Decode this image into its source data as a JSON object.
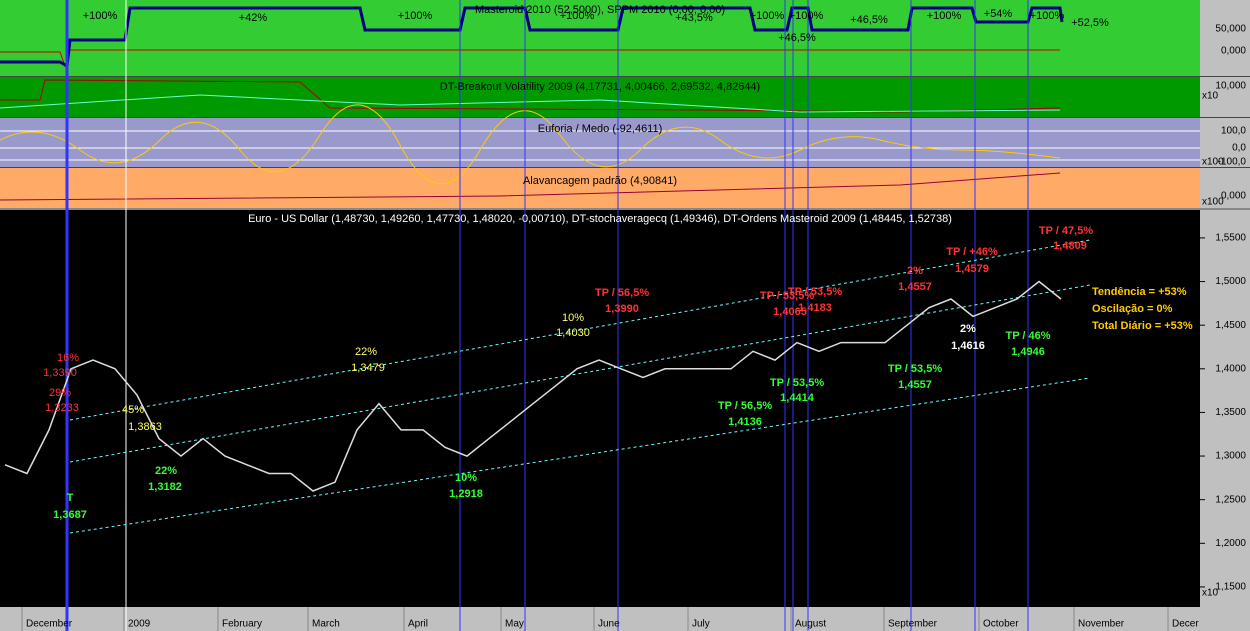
{
  "panels": {
    "masteroid": {
      "title": "Masteroid 2010 (52,5000), SPPM 2010 (0,00, 0,00)",
      "axis_labels": [
        "50,000",
        "0,000"
      ],
      "labels": [
        "+100%",
        "+42%",
        "+100%",
        "+100%",
        "+43,5%",
        "+100%",
        "+100%",
        "+46,5%",
        "+46,5%",
        "+100%",
        "+54%",
        "+100%",
        "+52,5%"
      ]
    },
    "volatility": {
      "title": "DT-Breakout Volatility 2009 (4,17731, 4,00466, 2,69532, 4,82644)",
      "axis_labels": [
        "10,000",
        "x10"
      ]
    },
    "euforia": {
      "title": "Euforia / Medo (-92,4611)",
      "axis_labels": [
        "100,0",
        "0,0",
        "-100,0",
        "x100"
      ]
    },
    "alavancagem": {
      "title": "Alavancagem padrão (4,90841)",
      "axis_labels": [
        "0,000",
        "x100"
      ]
    }
  },
  "main": {
    "title": "Euro - US Dollar (1,48730, 1,49260, 1,47730, 1,48020, -0,00710), DT-stochaveragecq (1,49346), DT-Ordens Masteroid 2009 (1,48445, 1,52738)",
    "ylim": [
      1.127,
      1.582
    ],
    "yticks": [
      {
        "value": 1.55,
        "label": "1,5500"
      },
      {
        "value": 1.5,
        "label": "1,5000"
      },
      {
        "value": 1.45,
        "label": "1,4500"
      },
      {
        "value": 1.4,
        "label": "1,4000"
      },
      {
        "value": 1.35,
        "label": "1,3500"
      },
      {
        "value": 1.3,
        "label": "1,3000"
      },
      {
        "value": 1.25,
        "label": "1,2500"
      },
      {
        "value": 1.2,
        "label": "1,2000"
      },
      {
        "value": 1.15,
        "label": "1,1500"
      }
    ],
    "scale_note": "x10",
    "closes": [
      1.29,
      1.28,
      1.33,
      1.4,
      1.41,
      1.4,
      1.37,
      1.32,
      1.3,
      1.32,
      1.3,
      1.29,
      1.28,
      1.28,
      1.26,
      1.27,
      1.33,
      1.36,
      1.33,
      1.33,
      1.31,
      1.3,
      1.32,
      1.34,
      1.36,
      1.38,
      1.4,
      1.41,
      1.4,
      1.39,
      1.4,
      1.4,
      1.4,
      1.4,
      1.42,
      1.41,
      1.43,
      1.42,
      1.43,
      1.43,
      1.43,
      1.45,
      1.47,
      1.48,
      1.46,
      1.47,
      1.48,
      1.5,
      1.48
    ],
    "close_color": "#dddddd",
    "annotations": [
      {
        "text": "16%",
        "color": "#ff3333"
      },
      {
        "text": "1,3390",
        "color": "#ff3333"
      },
      {
        "text": "29%",
        "color": "#ff3333"
      },
      {
        "text": "1,3233",
        "color": "#ff3333"
      },
      {
        "text": "TP / 56,5%",
        "color": "#ff3333"
      },
      {
        "text": "1,3990",
        "color": "#ff3333"
      },
      {
        "text": "TP / 53,5%",
        "color": "#ff3333"
      },
      {
        "text": "1,4065",
        "color": "#ff3333"
      },
      {
        "text": "TP / 53,5%",
        "color": "#ff3333"
      },
      {
        "text": "1,4183",
        "color": "#ff3333"
      },
      {
        "text": "2%",
        "color": "#ff3333"
      },
      {
        "text": "1,4557",
        "color": "#ff3333"
      },
      {
        "text": "TP / +46%",
        "color": "#ff3333"
      },
      {
        "text": "1,4579",
        "color": "#ff3333"
      },
      {
        "text": "TP / 47,5%",
        "color": "#ff3333"
      },
      {
        "text": "1,4809",
        "color": "#ff3333"
      },
      {
        "text": "45%",
        "color": "#ffff66"
      },
      {
        "text": "1,3863",
        "color": "#ffff66"
      },
      {
        "text": "22%",
        "color": "#ffff66"
      },
      {
        "text": "1,3479",
        "color": "#ffff66"
      },
      {
        "text": "10%",
        "color": "#ffff66"
      },
      {
        "text": "1,4030",
        "color": "#ffff66"
      },
      {
        "text": "2%",
        "color": "#ffffff"
      },
      {
        "text": "1,4616",
        "color": "#ffffff"
      },
      {
        "text": "22%",
        "color": "#33ff33"
      },
      {
        "text": "1,3182",
        "color": "#33ff33"
      },
      {
        "text": "10%",
        "color": "#33ff33"
      },
      {
        "text": "1,2918",
        "color": "#33ff33"
      },
      {
        "text": "T",
        "color": "#33ff33"
      },
      {
        "text": "1,3687",
        "color": "#33ff33"
      },
      {
        "text": "TP / 56,5%",
        "color": "#33ff33"
      },
      {
        "text": "1,4136",
        "color": "#33ff33"
      },
      {
        "text": "TP / 53,5%",
        "color": "#33ff33"
      },
      {
        "text": "1,4414",
        "color": "#33ff33"
      },
      {
        "text": "TP / 53,5%",
        "color": "#33ff33"
      },
      {
        "text": "1,4557",
        "color": "#33ff33"
      },
      {
        "text": "TP / 46%",
        "color": "#33ff33"
      },
      {
        "text": "1,4946",
        "color": "#33ff33"
      }
    ],
    "summary": [
      "Tendência = +53%",
      "Oscilação = 0%",
      "Total Diário = +53%"
    ],
    "summary_color": "#ffcc00"
  },
  "x_axis": [
    "December",
    "2009",
    "February",
    "March",
    "April",
    "May",
    "June",
    "July",
    "August",
    "September",
    "October",
    "November",
    "Decer"
  ]
}
